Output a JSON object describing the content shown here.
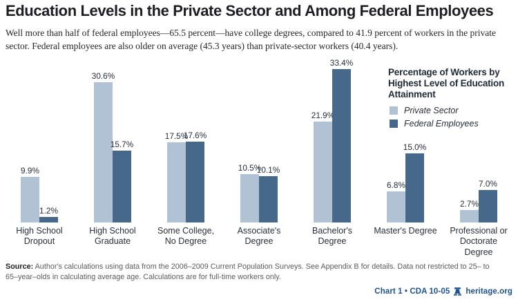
{
  "header": {
    "title": "Education Levels in the Private Sector and Among Federal Employees",
    "subtitle": "Well more than half of federal employees—65.5 percent—have college degrees, compared to 41.9 percent of workers in the private sector. Federal employees are also older on average (45.3 years) than private-sector workers (40.4 years)."
  },
  "chart_data": {
    "type": "bar",
    "title": "Percentage of Workers by Highest Level of Education Attainment",
    "categories": [
      "High School\nDropout",
      "High School\nGraduate",
      "Some College,\nNo Degree",
      "Associate's\nDegree",
      "Bachelor's\nDegree",
      "Master's Degree",
      "Professional or\nDoctorate\nDegree"
    ],
    "series": [
      {
        "name": "Private Sector",
        "color": "#b1c2d4",
        "values": [
          9.9,
          30.6,
          17.5,
          10.5,
          21.9,
          6.8,
          2.7
        ],
        "value_labels": [
          "9.9%",
          "30.6%",
          "17.5%",
          "10.5%",
          "21.9%",
          "6.8%",
          "2.7%"
        ]
      },
      {
        "name": "Federal Employees",
        "color": "#45688b",
        "values": [
          1.2,
          15.7,
          17.6,
          10.1,
          33.4,
          15.0,
          7.0
        ],
        "value_labels": [
          "1.2%",
          "15.7%",
          "17.6%",
          "10.1%",
          "33.4%",
          "15.0%",
          "7.0%"
        ]
      }
    ],
    "value_suffix": "%",
    "ylim": [
      0,
      35
    ],
    "grid": false,
    "axis_line": false,
    "legend_position": "top-right"
  },
  "legend": {
    "title": "Percentage of Workers by\nHighest Level of Education\nAttainment",
    "items": [
      {
        "label": "Private Sector",
        "color": "#b1c2d4"
      },
      {
        "label": "Federal Employees",
        "color": "#45688b"
      }
    ]
  },
  "footer": {
    "source_label": "Source:",
    "source_text": " Author's calculations using data from the 2006–2009 Current Population Surveys. See Appendix B for details. Data not restricted to 25– to 65–year–olds in calculating average age. Calculations are for full-time workers only.",
    "chart_ref": "Chart 1 • CDA 10-05",
    "site": "heritage.org",
    "accent_color": "#1d5191"
  }
}
